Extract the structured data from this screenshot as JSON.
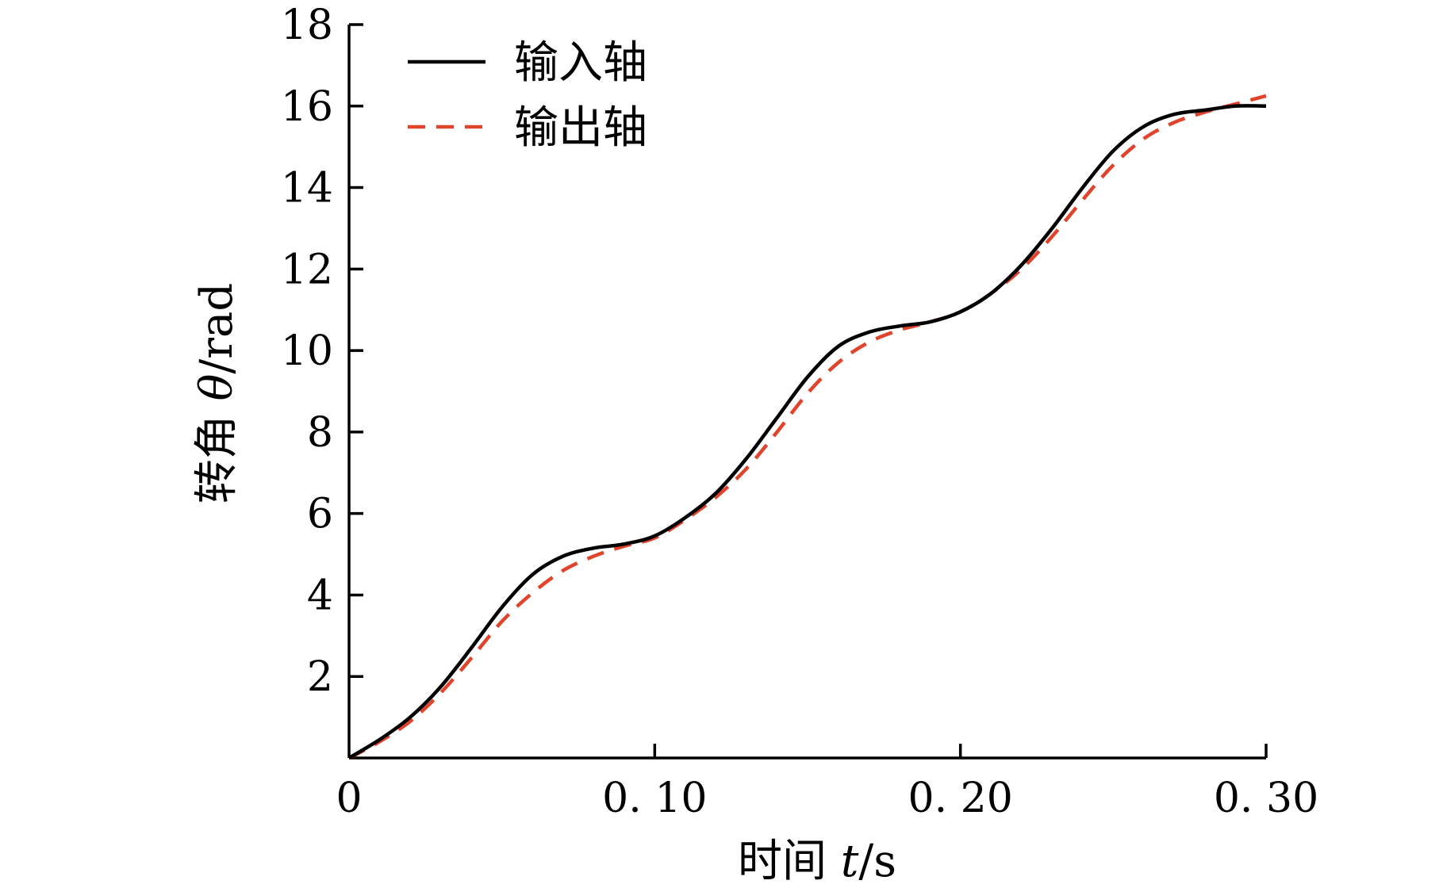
{
  "chart_data": {
    "type": "line",
    "xlabel": {
      "prefix": "时间 ",
      "var": "t",
      "suffix": "/s"
    },
    "ylabel": {
      "prefix": "转角 ",
      "var": "θ",
      "suffix": "/rad"
    },
    "xlim": [
      0,
      0.3
    ],
    "ylim": [
      0,
      18
    ],
    "xticks": [
      0,
      0.1,
      0.2,
      0.3
    ],
    "xtick_labels": [
      "0",
      "0. 10",
      "0. 20",
      "0. 30"
    ],
    "yticks": [
      2,
      4,
      6,
      8,
      10,
      12,
      14,
      16,
      18
    ],
    "ytick_labels": [
      "2",
      "4",
      "6",
      "8",
      "10",
      "12",
      "14",
      "16",
      "18"
    ],
    "grid": false,
    "legend_position": "top-left",
    "series": [
      {
        "name": "输入轴",
        "color": "#000000",
        "style": "solid",
        "x": [
          0,
          0.01,
          0.02,
          0.03,
          0.04,
          0.05,
          0.06,
          0.07,
          0.08,
          0.09,
          0.1,
          0.11,
          0.12,
          0.13,
          0.14,
          0.15,
          0.16,
          0.17,
          0.18,
          0.19,
          0.2,
          0.21,
          0.22,
          0.23,
          0.24,
          0.25,
          0.26,
          0.27,
          0.28,
          0.29,
          0.3
        ],
        "y": [
          0,
          0.45,
          1.0,
          1.75,
          2.7,
          3.7,
          4.5,
          4.95,
          5.15,
          5.25,
          5.45,
          5.9,
          6.5,
          7.35,
          8.35,
          9.35,
          10.1,
          10.45,
          10.6,
          10.7,
          10.95,
          11.4,
          12.1,
          13.0,
          14.0,
          14.9,
          15.5,
          15.8,
          15.9,
          16.0,
          16.0
        ]
      },
      {
        "name": "输出轴",
        "color": "#E0442C",
        "style": "dashed",
        "x": [
          0,
          0.01,
          0.02,
          0.03,
          0.04,
          0.05,
          0.06,
          0.07,
          0.08,
          0.09,
          0.1,
          0.11,
          0.12,
          0.13,
          0.14,
          0.15,
          0.16,
          0.17,
          0.18,
          0.19,
          0.2,
          0.21,
          0.22,
          0.23,
          0.24,
          0.25,
          0.26,
          0.27,
          0.28,
          0.29,
          0.3
        ],
        "y": [
          0,
          0.4,
          0.9,
          1.6,
          2.45,
          3.35,
          4.05,
          4.6,
          4.95,
          5.2,
          5.4,
          5.85,
          6.4,
          7.1,
          8.0,
          8.95,
          9.7,
          10.2,
          10.5,
          10.7,
          10.95,
          11.4,
          12.0,
          12.8,
          13.7,
          14.55,
          15.2,
          15.6,
          15.85,
          16.05,
          16.25
        ]
      }
    ]
  }
}
